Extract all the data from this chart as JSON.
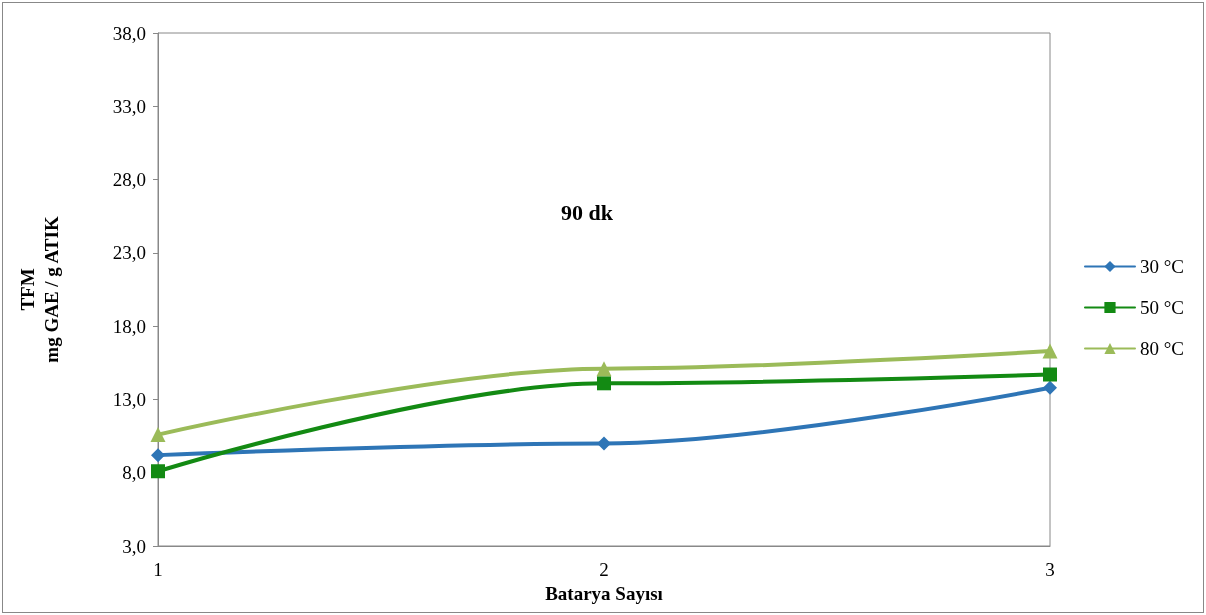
{
  "chart_data": {
    "type": "line",
    "xlabel": "Batarya Sayısı",
    "ylabel": "TFM\nmg GAE / g ATIK",
    "categories": [
      "1",
      "2",
      "3"
    ],
    "series": [
      {
        "name": "30 °C",
        "color": "#2e75b6",
        "marker": "diamond",
        "values": [
          9.2,
          10.0,
          13.8
        ]
      },
      {
        "name": "50 °C",
        "color": "#138a13",
        "marker": "square",
        "values": [
          8.1,
          14.1,
          14.7
        ]
      },
      {
        "name": "80 °C",
        "color": "#9bbb59",
        "marker": "triangle",
        "values": [
          10.6,
          15.1,
          16.3
        ]
      }
    ],
    "ylim": [
      3,
      38
    ],
    "yticks": [
      {
        "value": 3,
        "label": "3,0"
      },
      {
        "value": 8,
        "label": "8,0"
      },
      {
        "value": 13,
        "label": "13,0"
      },
      {
        "value": 18,
        "label": "18,0"
      },
      {
        "value": 23,
        "label": "23,0"
      },
      {
        "value": 28,
        "label": "28,0"
      },
      {
        "value": 33,
        "label": "33,0"
      },
      {
        "value": 38,
        "label": "38,0"
      }
    ],
    "annotations": [
      "90 dk"
    ],
    "legend": "right",
    "grid": false,
    "line_style": "solid"
  }
}
